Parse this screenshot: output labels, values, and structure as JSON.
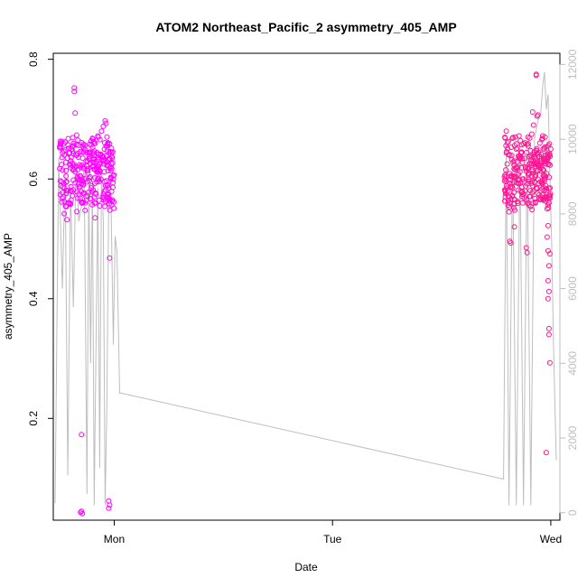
{
  "chart_data": {
    "type": "scatter",
    "title": "ATOM2 Northeast_Pacific_2 asymmetry_405_AMP",
    "xlabel": "Date",
    "ylabel": "asymmetry_405_AMP",
    "x_ticks": [
      "Mon",
      "Tue",
      "Wed"
    ],
    "x_tick_hours": [
      24,
      48,
      72
    ],
    "xlim": [
      17.3,
      73.0
    ],
    "y_ticks": [
      "0.2",
      "0.4",
      "0.6",
      "0.8"
    ],
    "y_tick_values": [
      0.2,
      0.4,
      0.6,
      0.8
    ],
    "ylim": [
      0.03,
      0.81
    ],
    "y2_ticks": [
      "0",
      "2000",
      "4000",
      "6000",
      "8000",
      "10000",
      "12000"
    ],
    "y2_tick_values": [
      0,
      2000,
      4000,
      6000,
      8000,
      10000,
      12000
    ],
    "y2lim": [
      -200,
      12300
    ],
    "grid": false,
    "colors": {
      "series_a": "#ff00ff",
      "series_b": "#ff1493",
      "line": "#bebebe",
      "axis": "#000000"
    },
    "secondary_line": [
      [
        17.5,
        250
      ],
      [
        17.9,
        9500
      ],
      [
        18.3,
        6000
      ],
      [
        18.6,
        9200
      ],
      [
        18.9,
        1000
      ],
      [
        19.2,
        8800
      ],
      [
        19.5,
        5500
      ],
      [
        19.8,
        9400
      ],
      [
        20.1,
        7800
      ],
      [
        20.4,
        8200
      ],
      [
        20.7,
        9300
      ],
      [
        21.0,
        500
      ],
      [
        21.2,
        9000
      ],
      [
        21.4,
        4000
      ],
      [
        21.6,
        8900
      ],
      [
        21.8,
        200
      ],
      [
        22.0,
        4500
      ],
      [
        22.2,
        8700
      ],
      [
        22.4,
        1200
      ],
      [
        22.6,
        9200
      ],
      [
        22.8,
        7800
      ],
      [
        23.0,
        200
      ],
      [
        23.2,
        3000
      ],
      [
        23.4,
        8400
      ],
      [
        23.6,
        9000
      ],
      [
        23.9,
        4500
      ],
      [
        24.1,
        7400
      ],
      [
        24.3,
        7000
      ],
      [
        24.6,
        3200
      ],
      [
        24.8,
        3200
      ],
      [
        66.8,
        900
      ],
      [
        67.1,
        9800
      ],
      [
        67.4,
        200
      ],
      [
        67.8,
        9600
      ],
      [
        68.2,
        200
      ],
      [
        68.6,
        9500
      ],
      [
        69.0,
        200
      ],
      [
        69.4,
        9700
      ],
      [
        69.8,
        200
      ],
      [
        70.2,
        10000
      ],
      [
        70.6,
        10500
      ],
      [
        70.9,
        10700
      ],
      [
        71.1,
        11400
      ],
      [
        71.3,
        11800
      ],
      [
        71.5,
        10800
      ],
      [
        71.7,
        11200
      ],
      [
        71.9,
        9000
      ],
      [
        72.1,
        7200
      ],
      [
        72.3,
        4500
      ],
      [
        72.5,
        2400
      ],
      [
        72.6,
        1400
      ]
    ],
    "series": [
      {
        "color": "#ff00ff",
        "x_range": [
          18.0,
          24.0
        ],
        "points": [
          [
            19.6,
            0.752
          ],
          [
            19.6,
            0.746
          ],
          [
            19.7,
            0.71
          ],
          [
            23.0,
            0.697
          ],
          [
            23.1,
            0.693
          ],
          [
            22.8,
            0.688
          ],
          [
            20.4,
            0.173
          ],
          [
            20.3,
            0.043
          ],
          [
            20.5,
            0.041
          ],
          [
            20.4,
            0.045
          ],
          [
            23.4,
            0.062
          ],
          [
            23.5,
            0.055
          ],
          [
            23.4,
            0.05
          ],
          [
            23.5,
            0.468
          ],
          [
            18.5,
            0.542
          ],
          [
            18.8,
            0.532
          ],
          [
            21.9,
            0.535
          ],
          [
            18.2,
            0.595
          ],
          [
            18.3,
            0.615
          ],
          [
            18.5,
            0.64
          ],
          [
            18.7,
            0.605
          ],
          [
            18.9,
            0.58
          ],
          [
            19.1,
            0.625
          ],
          [
            19.3,
            0.65
          ],
          [
            19.5,
            0.598
          ],
          [
            19.7,
            0.612
          ],
          [
            19.9,
            0.64
          ],
          [
            20.1,
            0.575
          ],
          [
            20.3,
            0.62
          ],
          [
            20.5,
            0.655
          ],
          [
            20.7,
            0.6
          ],
          [
            20.9,
            0.63
          ],
          [
            21.1,
            0.61
          ],
          [
            21.3,
            0.645
          ],
          [
            21.5,
            0.585
          ],
          [
            21.7,
            0.622
          ],
          [
            21.9,
            0.66
          ],
          [
            22.1,
            0.595
          ],
          [
            22.3,
            0.615
          ],
          [
            22.5,
            0.64
          ],
          [
            22.7,
            0.57
          ],
          [
            22.9,
            0.625
          ],
          [
            23.1,
            0.655
          ],
          [
            23.3,
            0.59
          ],
          [
            23.5,
            0.618
          ],
          [
            23.7,
            0.645
          ],
          [
            23.9,
            0.6
          ],
          [
            18.4,
            0.57
          ],
          [
            19.0,
            0.56
          ],
          [
            20.0,
            0.665
          ],
          [
            20.8,
            0.56
          ],
          [
            21.6,
            0.668
          ],
          [
            22.4,
            0.555
          ],
          [
            23.2,
            0.67
          ],
          [
            23.8,
            0.565
          ],
          [
            18.6,
            0.662
          ],
          [
            19.4,
            0.572
          ],
          [
            20.6,
            0.59
          ],
          [
            21.2,
            0.578
          ],
          [
            22.2,
            0.672
          ],
          [
            22.6,
            0.68
          ],
          [
            23.6,
            0.6
          ]
        ]
      },
      {
        "color": "#ff1493",
        "x_range": [
          66.9,
          72.0
        ],
        "points": [
          [
            70.4,
            0.775
          ],
          [
            70.4,
            0.773
          ],
          [
            70.5,
            0.705
          ],
          [
            70.6,
            0.707
          ],
          [
            70.0,
            0.712
          ],
          [
            70.1,
            0.69
          ],
          [
            71.5,
            0.143
          ],
          [
            71.9,
            0.293
          ],
          [
            71.8,
            0.34
          ],
          [
            71.8,
            0.35
          ],
          [
            71.7,
            0.4
          ],
          [
            71.8,
            0.412
          ],
          [
            71.7,
            0.43
          ],
          [
            71.8,
            0.455
          ],
          [
            71.9,
            0.475
          ],
          [
            71.7,
            0.48
          ],
          [
            71.6,
            0.503
          ],
          [
            71.7,
            0.522
          ],
          [
            71.6,
            0.55
          ],
          [
            71.8,
            0.56
          ],
          [
            67.5,
            0.496
          ],
          [
            67.6,
            0.493
          ],
          [
            68.0,
            0.52
          ],
          [
            67.4,
            0.545
          ],
          [
            67.3,
            0.58
          ],
          [
            69.3,
            0.485
          ],
          [
            69.4,
            0.477
          ],
          [
            67.0,
            0.6
          ],
          [
            67.2,
            0.625
          ],
          [
            67.4,
            0.64
          ],
          [
            67.6,
            0.605
          ],
          [
            67.8,
            0.585
          ],
          [
            68.0,
            0.63
          ],
          [
            68.2,
            0.65
          ],
          [
            68.4,
            0.598
          ],
          [
            68.6,
            0.612
          ],
          [
            68.8,
            0.645
          ],
          [
            69.0,
            0.575
          ],
          [
            69.2,
            0.62
          ],
          [
            69.4,
            0.658
          ],
          [
            69.6,
            0.6
          ],
          [
            69.8,
            0.632
          ],
          [
            70.0,
            0.61
          ],
          [
            70.2,
            0.645
          ],
          [
            70.4,
            0.585
          ],
          [
            70.6,
            0.622
          ],
          [
            70.8,
            0.66
          ],
          [
            71.0,
            0.595
          ],
          [
            71.2,
            0.615
          ],
          [
            71.4,
            0.64
          ],
          [
            71.6,
            0.57
          ],
          [
            71.8,
            0.625
          ],
          [
            72.0,
            0.65
          ],
          [
            67.1,
            0.68
          ],
          [
            67.5,
            0.56
          ],
          [
            68.1,
            0.67
          ],
          [
            68.9,
            0.56
          ],
          [
            69.5,
            0.67
          ],
          [
            70.3,
            0.56
          ],
          [
            71.1,
            0.672
          ],
          [
            71.5,
            0.58
          ],
          [
            68.5,
            0.672
          ],
          [
            69.9,
            0.675
          ],
          [
            70.7,
            0.568
          ]
        ]
      }
    ]
  }
}
